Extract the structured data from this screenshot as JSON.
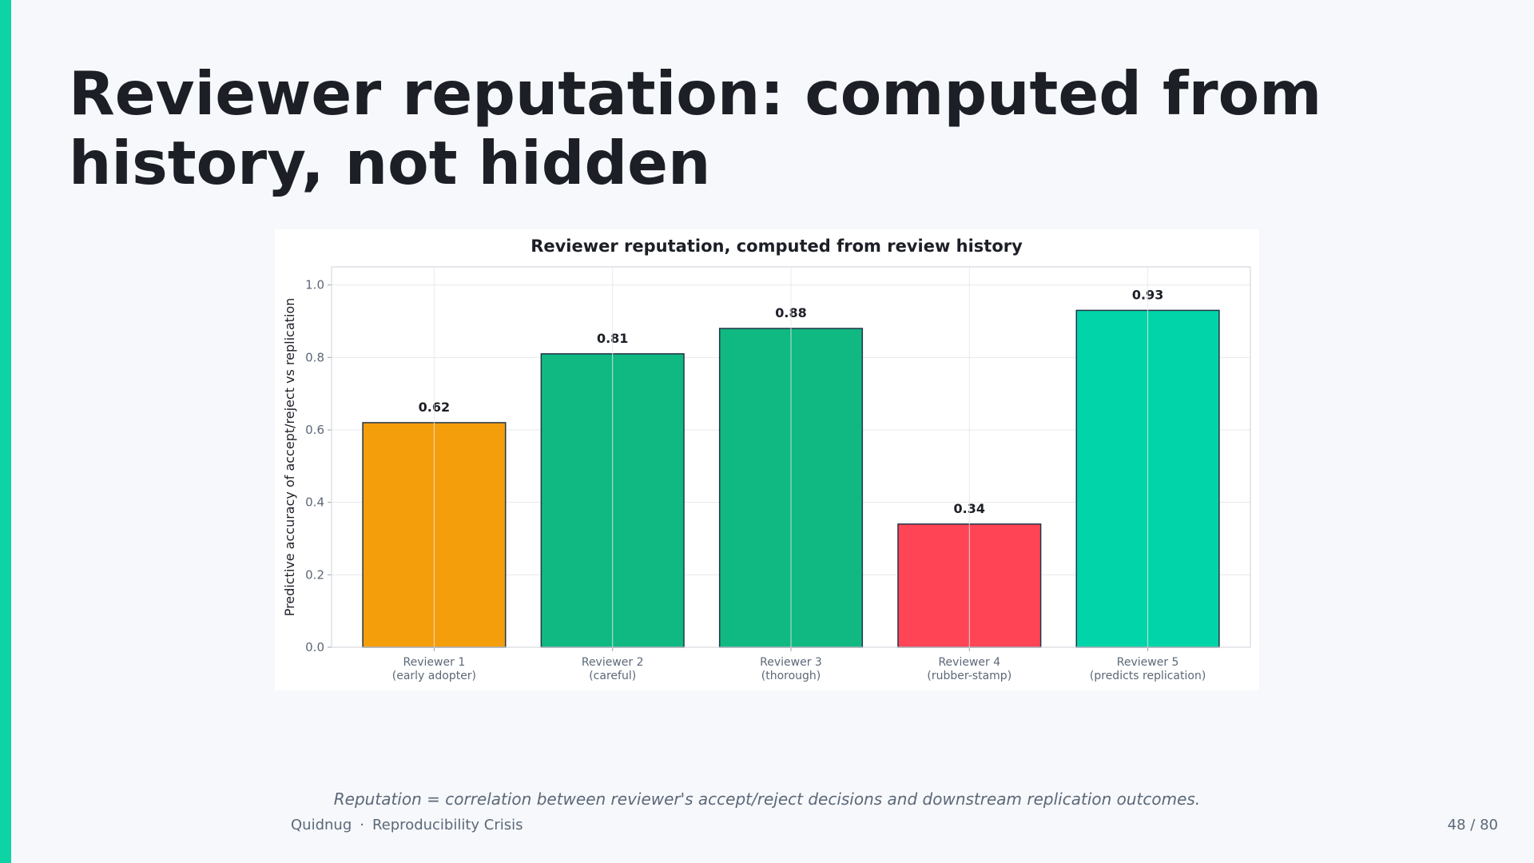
{
  "slide": {
    "title": "Reviewer reputation: computed from history, not hidden",
    "caption": "Reputation = correlation between reviewer's accept/reject decisions and downstream replication outcomes.",
    "footer_brand": "Quidnug",
    "footer_separator": "·",
    "footer_topic": "Reproducibility Crisis",
    "page_number": "48 / 80",
    "accent_color": "#0ed3a5"
  },
  "chart_data": {
    "type": "bar",
    "title": "Reviewer reputation, computed from review history",
    "xlabel": "",
    "ylabel": "Predictive accuracy of accept/reject vs replication",
    "ylim": [
      0,
      1.05
    ],
    "yticks": [
      0.0,
      0.2,
      0.4,
      0.6,
      0.8,
      1.0
    ],
    "ytick_labels": [
      "0.0",
      "0.2",
      "0.4",
      "0.6",
      "0.8",
      "1.0"
    ],
    "grid": true,
    "categories": [
      {
        "line1": "Reviewer 1",
        "line2": "(early adopter)"
      },
      {
        "line1": "Reviewer 2",
        "line2": "(careful)"
      },
      {
        "line1": "Reviewer 3",
        "line2": "(thorough)"
      },
      {
        "line1": "Reviewer 4",
        "line2": "(rubber-stamp)"
      },
      {
        "line1": "Reviewer 5",
        "line2": "(predicts replication)"
      }
    ],
    "values": [
      0.62,
      0.81,
      0.88,
      0.34,
      0.93
    ],
    "value_labels": [
      "0.62",
      "0.81",
      "0.88",
      "0.34",
      "0.93"
    ],
    "colors": [
      "#f59e0b",
      "#10b981",
      "#10b981",
      "#ff4455",
      "#00d4a8"
    ]
  }
}
